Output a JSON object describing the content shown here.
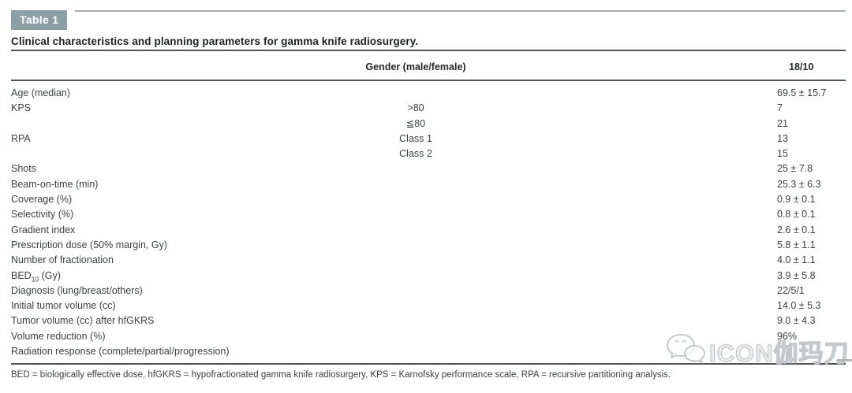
{
  "table_badge": "Table 1",
  "title": "Clinical characteristics and planning parameters for gamma knife radiosurgery.",
  "header": {
    "mid_label": "Gender (male/female)",
    "value": "18/10"
  },
  "rows": [
    {
      "label": "Age (median)",
      "mid": "",
      "value": "69.5 ± 15.7"
    },
    {
      "label": "KPS",
      "mid": ">80",
      "value": "7"
    },
    {
      "label": "",
      "mid": "≦80",
      "value": "21"
    },
    {
      "label": "RPA",
      "mid": "Class 1",
      "value": "13"
    },
    {
      "label": "",
      "mid": "Class 2",
      "value": "15"
    },
    {
      "label": "Shots",
      "mid": "",
      "value": "25 ± 7.8"
    },
    {
      "label": "Beam-on-time (min)",
      "mid": "",
      "value": "25.3 ± 6.3"
    },
    {
      "label": "Coverage (%)",
      "mid": "",
      "value": "0.9 ± 0.1"
    },
    {
      "label": "Selectivity (%)",
      "mid": "",
      "value": "0.8 ± 0.1"
    },
    {
      "label": "Gradient index",
      "mid": "",
      "value": "2.6 ± 0.1"
    },
    {
      "label": "Prescription dose (50% margin, Gy)",
      "mid": "",
      "value": "5.8 ± 1.1"
    },
    {
      "label": "Number of fractionation",
      "mid": "",
      "value": "4.0 ± 1.1"
    },
    {
      "label": "BED",
      "label_sub": "10",
      "label_rest": " (Gy)",
      "mid": "",
      "value": "3.9 ± 5.8"
    },
    {
      "label": "Diagnosis (lung/breast/others)",
      "mid": "",
      "value": "22/5/1"
    },
    {
      "label": "Initial tumor volume (cc)",
      "mid": "",
      "value": "14.0 ± 5.3"
    },
    {
      "label": "Tumor volume (cc) after hfGKRS",
      "mid": "",
      "value": "9.0 ± 4.3"
    },
    {
      "label": "Volume reduction (%)",
      "mid": "",
      "value": "96%"
    },
    {
      "label": "Radiation response (complete/partial/progression)",
      "mid": "",
      "value": ""
    }
  ],
  "footnote": "BED = biologically effective dose, hfGKRS = hypofractionated gamma knife radiosurgery, KPS = Karnofsky performance scale, RPA = recursive partitioning analysis.",
  "watermark": {
    "text": "ICON伽玛刀",
    "icon": "wechat-icon"
  },
  "colors": {
    "badge_bg": "#8c9ea6",
    "rule": "#4f5354",
    "body_text": "#3c3f40",
    "watermark": "#c2c6c8"
  }
}
